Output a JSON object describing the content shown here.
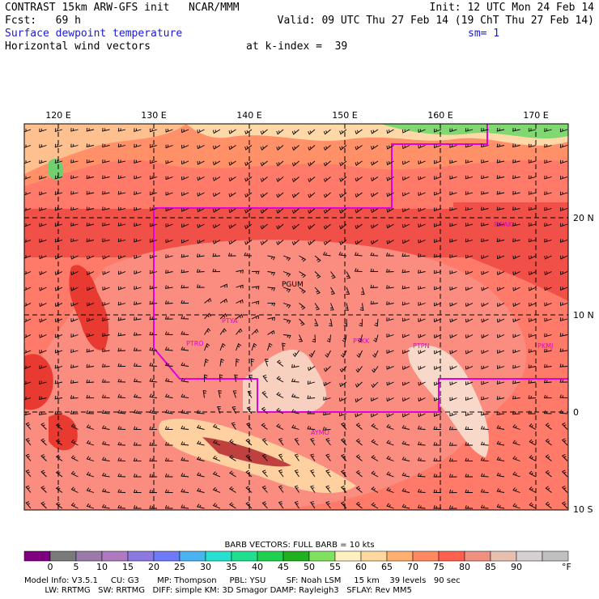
{
  "header": {
    "line1_left": "CONTRAST 15km ARW-GFS init   NCAR/MMM",
    "line1_right": "Init: 12 UTC Mon 24 Feb 14",
    "line2_left": "Fcst:   69 h",
    "line2_right": "Valid: 09 UTC Thu 27 Feb 14 (19 ChT Thu 27 Feb 14)",
    "line3_left": "Surface dewpoint temperature",
    "line3_right": "sm= 1",
    "line4_left": "Horizontal wind vectors",
    "line4_right": "at k-index =  39"
  },
  "map": {
    "lon_labels": [
      "120 E",
      "130 E",
      "140 E",
      "150 E",
      "160 E",
      "170 E"
    ],
    "lat_labels": [
      "20 N",
      "10 N",
      "0",
      "10 S"
    ],
    "stations": [
      {
        "id": "PGUM",
        "color": "#000000"
      },
      {
        "id": "PTRO",
        "color": "#e000e0"
      },
      {
        "id": "PTYA",
        "color": "#e000e0"
      },
      {
        "id": "PTKK",
        "color": "#e000e0"
      },
      {
        "id": "PTPN",
        "color": "#e000e0"
      },
      {
        "id": "PKMJ",
        "color": "#e000e0"
      },
      {
        "id": "PWAK",
        "color": "#e000e0"
      },
      {
        "id": "AYMO",
        "color": "#e000e0"
      }
    ]
  },
  "legend": {
    "title": "BARB VECTORS:  FULL BARB = 10 kts",
    "ticks": [
      "0",
      "5",
      "10",
      "15",
      "20",
      "25",
      "30",
      "35",
      "40",
      "45",
      "50",
      "55",
      "60",
      "65",
      "70",
      "75",
      "80",
      "85",
      "90"
    ],
    "unit": "°F",
    "colors": [
      "#7e0080",
      "#7a7a7a",
      "#9b7aaa",
      "#b07ac0",
      "#8c7ae0",
      "#6e7af8",
      "#4ab4f0",
      "#28e0d0",
      "#20e090",
      "#20d050",
      "#20b020",
      "#80e060",
      "#fff0c0",
      "#ffd8a0",
      "#ffb070",
      "#ff8860",
      "#ff6050",
      "#f09080",
      "#e8c0b0",
      "#d8d0d0",
      "#c0c0c0"
    ]
  },
  "footer": {
    "line1": "Model Info: V3.5.1     CU: G3       MP: Thompson     PBL: YSU        SF: Noah LSM     15 km    39 levels   90 sec",
    "line2": "        LW: RRTMG   SW: RRTMG   DIFF: simple KM: 3D Smagor DAMP: Rayleigh3   SFLAY: Rev MM5"
  }
}
